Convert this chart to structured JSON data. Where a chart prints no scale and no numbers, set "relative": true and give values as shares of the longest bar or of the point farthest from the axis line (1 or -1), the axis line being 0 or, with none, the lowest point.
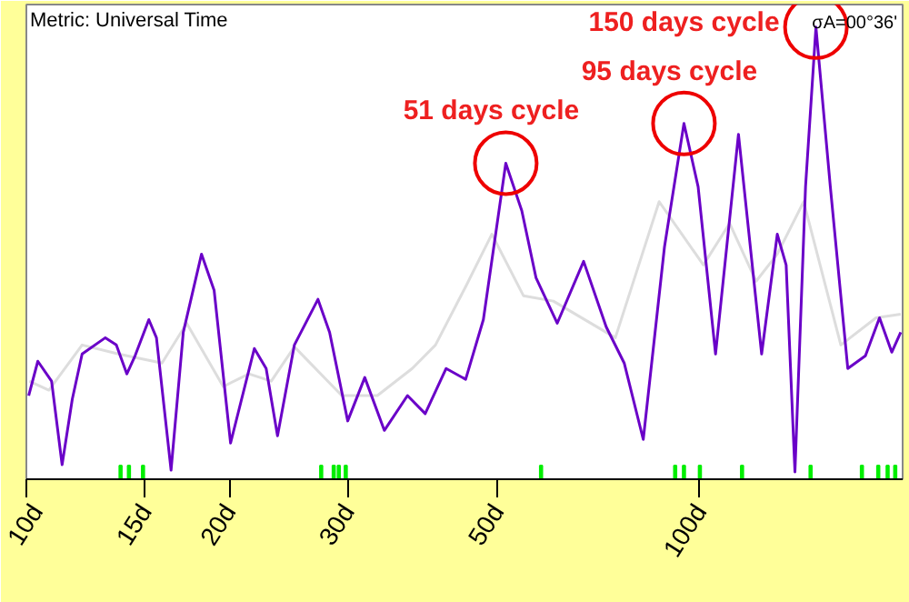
{
  "chart_data": {
    "type": "line",
    "title": "Metric: Universal Time",
    "relative": true,
    "log": "x",
    "xlim": [
      10,
      200
    ],
    "xticks": [
      {
        "value": 10,
        "label": "10d"
      },
      {
        "value": 15,
        "label": "15d"
      },
      {
        "value": 20,
        "label": "20d"
      },
      {
        "value": 30,
        "label": "30d"
      },
      {
        "value": 50,
        "label": "50d"
      },
      {
        "value": 100,
        "label": "100d"
      }
    ],
    "grid": false,
    "annotations": [
      {
        "text": "51 days cycle",
        "x": 51.5,
        "y": 0.699
      },
      {
        "text": "95 days cycle",
        "x": 94.7,
        "y": 0.787
      },
      {
        "text": "150 days cycle",
        "x": 148.7,
        "y": 1.0
      },
      "σA=00°36'"
    ],
    "series": [
      {
        "color": "#dddddd",
        "x": [
          10.1,
          10.8,
          12.1,
          13.7,
          15.9,
          17.3,
          19.6,
          21.4,
          23.1,
          25.0,
          29.4,
          33.2,
          37.4,
          40.5,
          44.9,
          49.1,
          54.7,
          60.6,
          74.9,
          87.0,
          101.2,
          110.7,
          121.2,
          130.3,
          142.6,
          161.9,
          182.6,
          198.7
        ],
        "values": [
          0.217,
          0.197,
          0.297,
          0.277,
          0.257,
          0.345,
          0.205,
          0.233,
          0.217,
          0.293,
          0.185,
          0.185,
          0.245,
          0.297,
          0.426,
          0.542,
          0.406,
          0.394,
          0.313,
          0.614,
          0.474,
          0.566,
          0.438,
          0.498,
          0.614,
          0.297,
          0.357,
          0.365
        ]
      },
      {
        "color": "#6a00c8",
        "x": [
          10.08,
          10.4,
          10.9,
          11.3,
          11.7,
          12.1,
          13.1,
          13.6,
          14.1,
          14.5,
          15.2,
          15.6,
          16.4,
          17.1,
          18.2,
          19.0,
          20.1,
          21.8,
          22.7,
          23.6,
          25.0,
          27.1,
          28.2,
          30.0,
          31.8,
          34.0,
          36.8,
          39.1,
          42.0,
          44.9,
          47.7,
          49.7,
          51.5,
          54.4,
          57.1,
          61.4,
          67.2,
          72.6,
          77.2,
          82.4,
          88.6,
          94.7,
          99.4,
          105.5,
          114.1,
          123.5,
          130.3,
          134.3,
          138.4,
          143.5,
          148.7,
          156.2,
          165.8,
          176.1,
          184.8,
          192.7,
          198.7
        ],
        "values": [
          0.185,
          0.261,
          0.217,
          0.032,
          0.177,
          0.277,
          0.313,
          0.297,
          0.233,
          0.273,
          0.353,
          0.313,
          0.02,
          0.325,
          0.498,
          0.418,
          0.08,
          0.289,
          0.245,
          0.096,
          0.297,
          0.398,
          0.325,
          0.129,
          0.225,
          0.108,
          0.185,
          0.145,
          0.245,
          0.221,
          0.353,
          0.538,
          0.699,
          0.594,
          0.446,
          0.345,
          0.482,
          0.337,
          0.257,
          0.088,
          0.514,
          0.787,
          0.647,
          0.277,
          0.763,
          0.277,
          0.542,
          0.474,
          0.016,
          0.647,
          1.0,
          0.647,
          0.245,
          0.273,
          0.357,
          0.281,
          0.325
        ]
      },
      {
        "type": "bar",
        "color": "#00ee00",
        "x": [
          13.8,
          14.2,
          14.9,
          27.4,
          28.6,
          29.1,
          29.8,
          58.1,
          91.9,
          94.7,
          100,
          115.5,
          146,
          174,
          184,
          190,
          195
        ],
        "values": [
          0.03,
          0.03,
          0.03,
          0.03,
          0.03,
          0.03,
          0.03,
          0.03,
          0.03,
          0.03,
          0.03,
          0.03,
          0.03,
          0.03,
          0.03,
          0.03,
          0.03
        ]
      }
    ]
  }
}
